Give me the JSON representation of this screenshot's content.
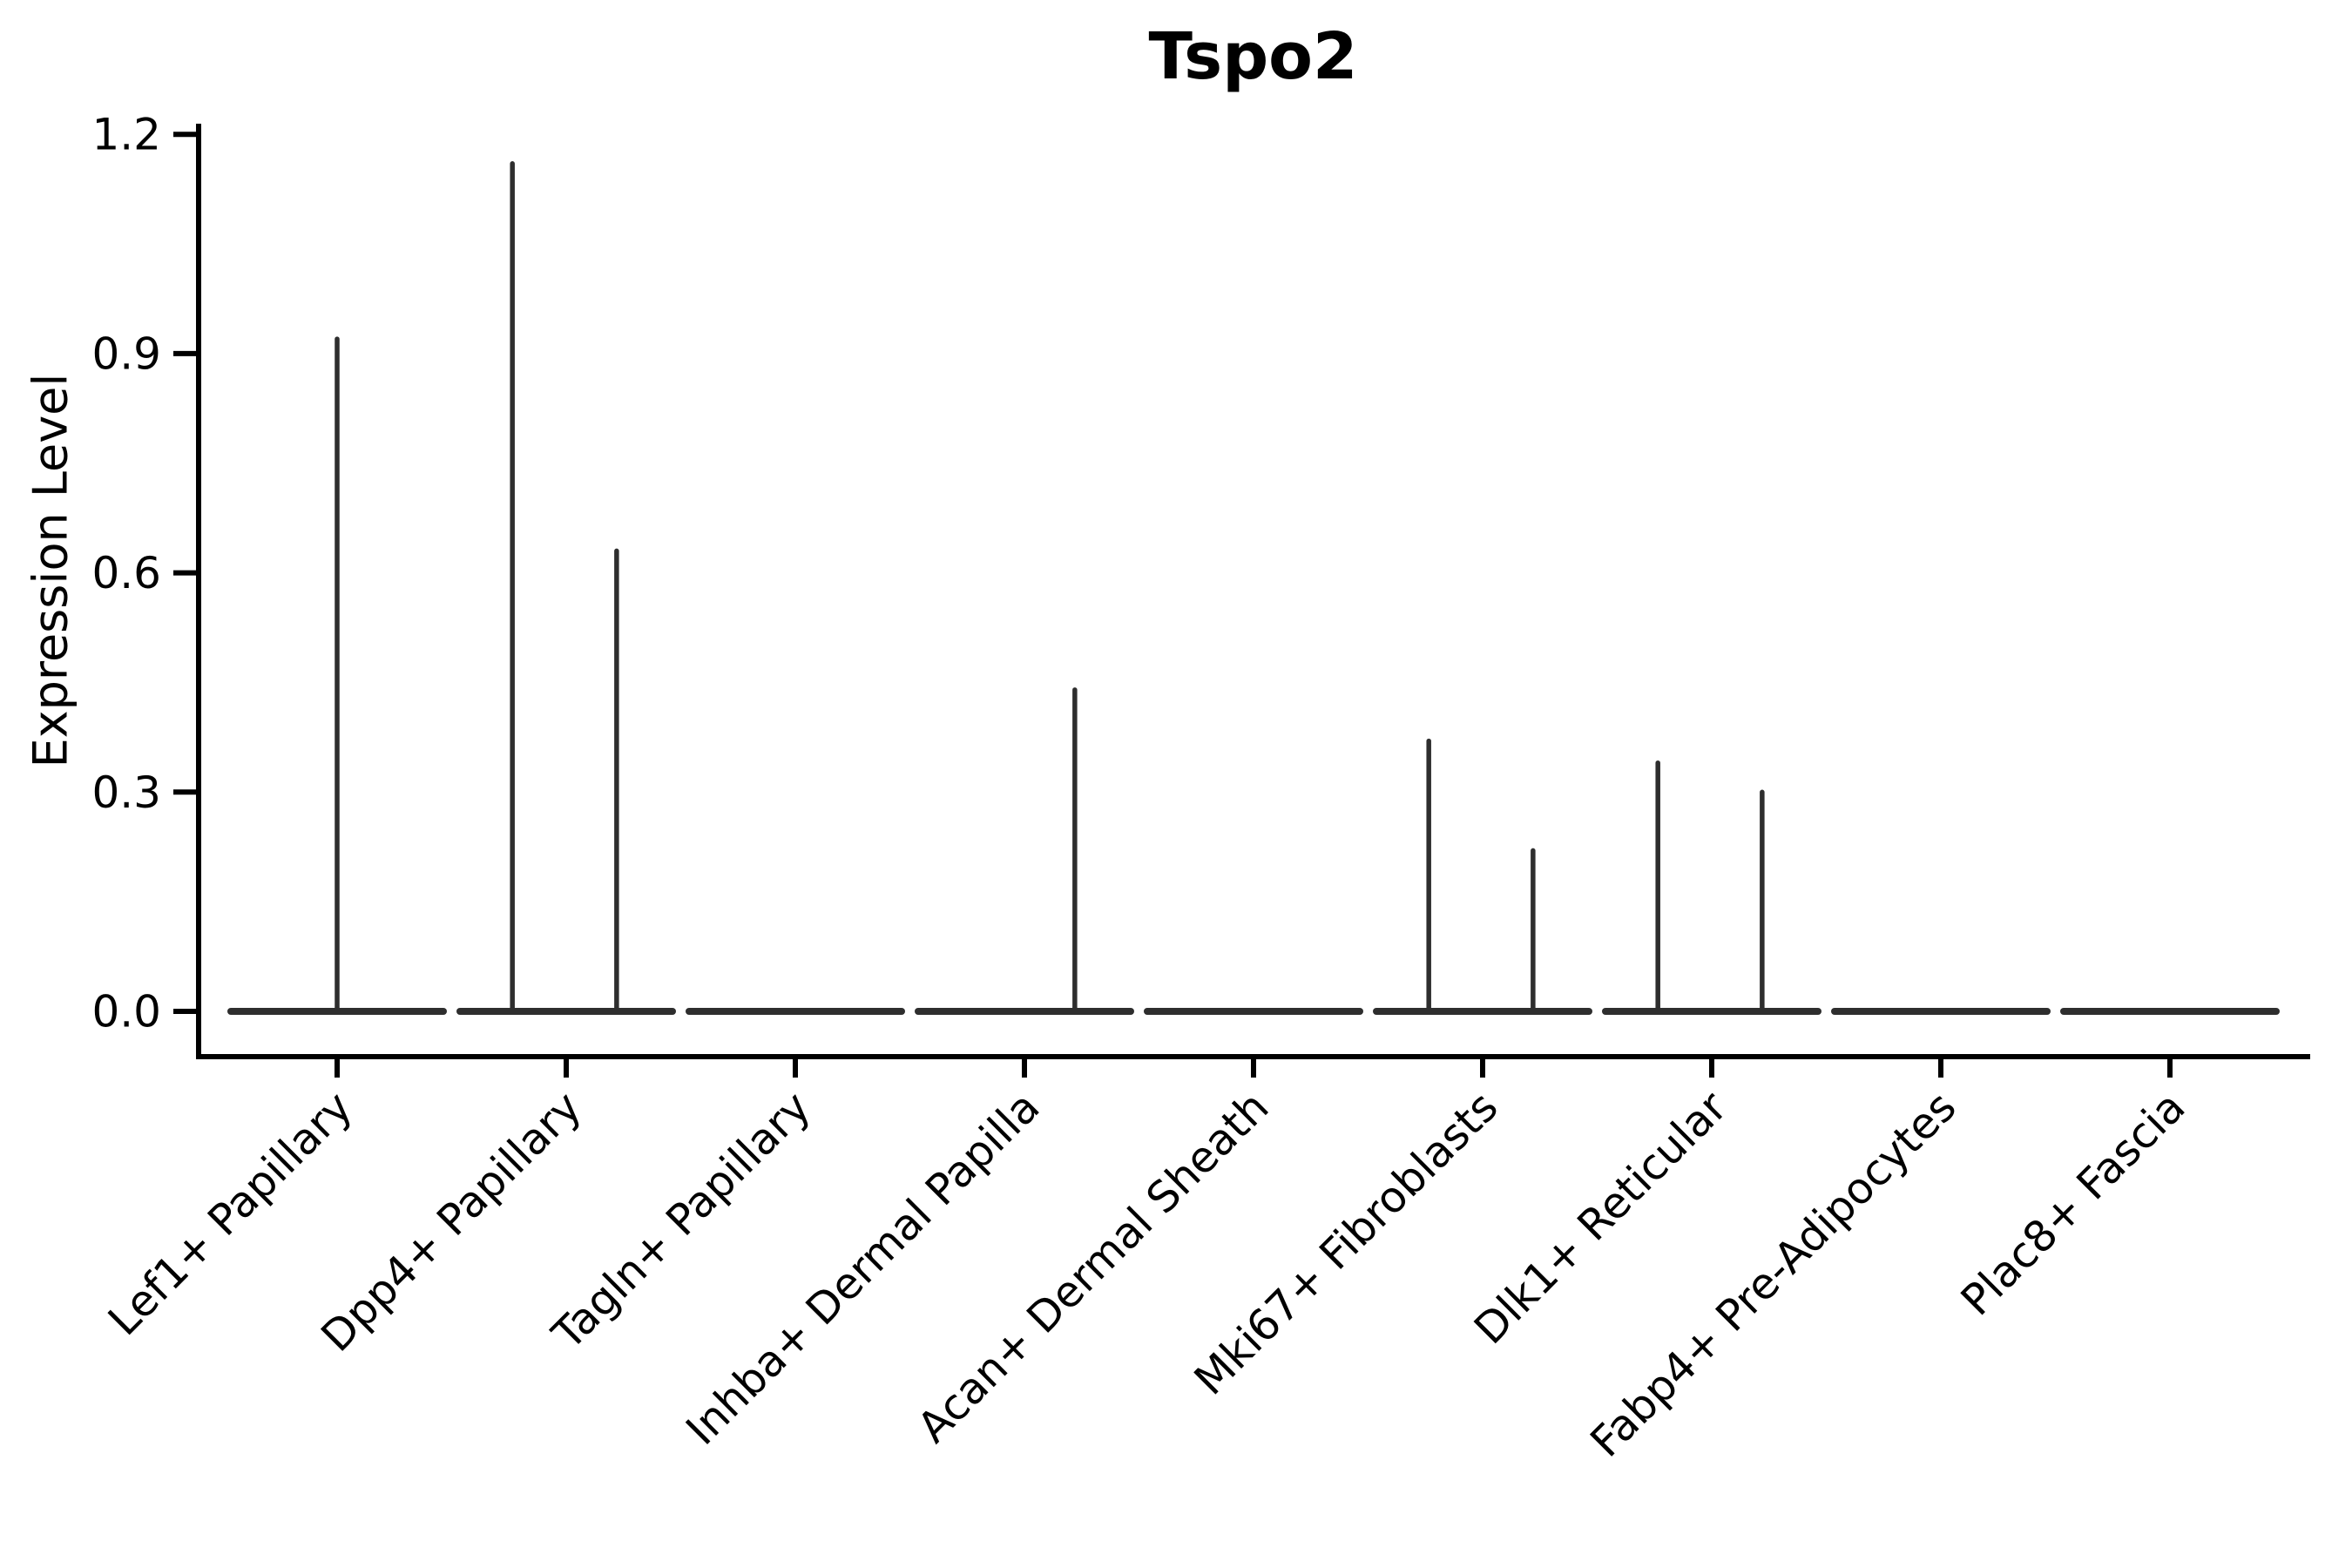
{
  "title": "Tspo2",
  "y_axis": {
    "label": "Expression Level",
    "ticks": [
      "0.0",
      "0.3",
      "0.6",
      "0.9",
      "1.2"
    ]
  },
  "colors": {
    "violin": "#2e2e2e",
    "axis": "#000000",
    "text": "#000000",
    "background": "#ffffff"
  },
  "chart_data": {
    "type": "violin",
    "title": "Tspo2",
    "xlabel": "",
    "ylabel": "Expression Level",
    "ylim": [
      0.0,
      1.2
    ],
    "yticks": [
      0.0,
      0.3,
      0.6,
      0.9,
      1.2
    ],
    "grid": false,
    "legend_position": "none",
    "categories": [
      "Lef1+ Papillary",
      "Dpp4+ Papillary",
      "Tagln+ Papillary",
      "Inhba+ Dermal Papilla",
      "Acan+ Dermal Sheath",
      "Mki67+ Fibroblasts",
      "Dlk1+ Reticular",
      "Fabp4+ Pre-Adipocytes",
      "Plac8+ Fascia"
    ],
    "violins": [
      {
        "category": "Lef1+ Papillary",
        "base_value": 0.0,
        "spikes": [
          {
            "offset_frac": 0.0,
            "max": 0.92
          }
        ]
      },
      {
        "category": "Dpp4+ Papillary",
        "base_value": 0.0,
        "spikes": [
          {
            "offset_frac": -0.235,
            "max": 1.16
          },
          {
            "offset_frac": 0.22,
            "max": 0.63
          }
        ]
      },
      {
        "category": "Tagln+ Papillary",
        "base_value": 0.0,
        "spikes": []
      },
      {
        "category": "Inhba+ Dermal Papilla",
        "base_value": 0.0,
        "spikes": [
          {
            "offset_frac": 0.22,
            "max": 0.44
          }
        ]
      },
      {
        "category": "Acan+ Dermal Sheath",
        "base_value": 0.0,
        "spikes": []
      },
      {
        "category": "Mki67+ Fibroblasts",
        "base_value": 0.0,
        "spikes": [
          {
            "offset_frac": -0.235,
            "max": 0.37
          },
          {
            "offset_frac": 0.22,
            "max": 0.22
          }
        ]
      },
      {
        "category": "Dlk1+ Reticular",
        "base_value": 0.0,
        "spikes": [
          {
            "offset_frac": -0.235,
            "max": 0.34
          },
          {
            "offset_frac": 0.22,
            "max": 0.3
          }
        ]
      },
      {
        "category": "Fabp4+ Pre-Adipocytes",
        "base_value": 0.0,
        "spikes": []
      },
      {
        "category": "Plac8+ Fascia",
        "base_value": 0.0,
        "spikes": []
      }
    ]
  }
}
